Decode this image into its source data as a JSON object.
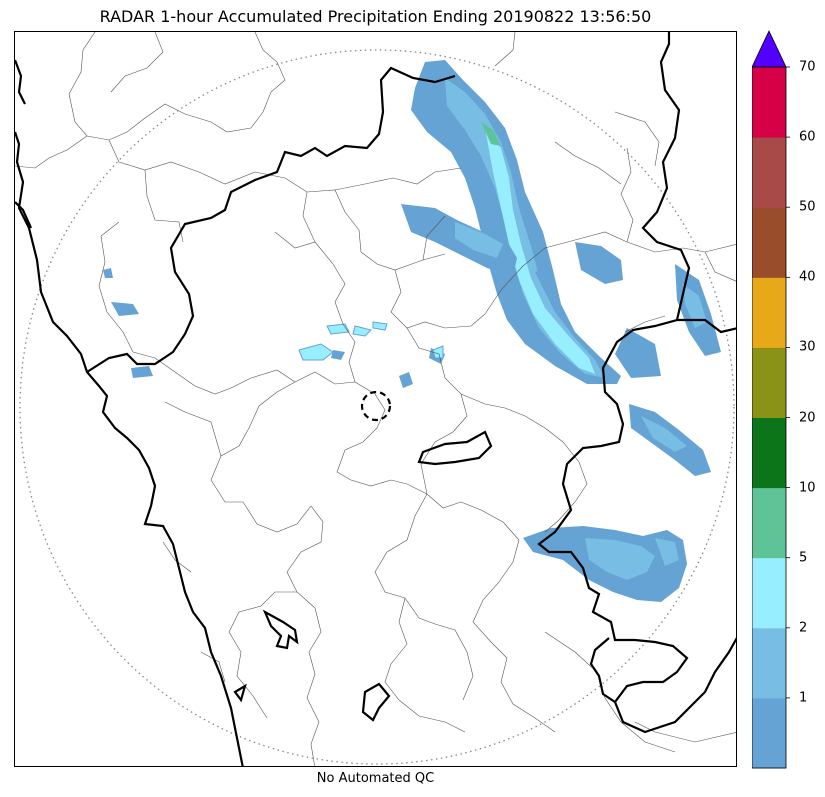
{
  "title": "RADAR 1-hour Accumulated Precipitation Ending 20190822 13:56:50",
  "footer": "No Automated QC",
  "colorbar": {
    "levels": [
      {
        "label": "",
        "color": "#64a3d4"
      },
      {
        "label": "1",
        "color": "#78bde3"
      },
      {
        "label": "2",
        "color": "#96eefe"
      },
      {
        "label": "5",
        "color": "#5ec498"
      },
      {
        "label": "10",
        "color": "#0c7419"
      },
      {
        "label": "20",
        "color": "#8a9218"
      },
      {
        "label": "30",
        "color": "#e7a81a"
      },
      {
        "label": "40",
        "color": "#9a4d2a"
      },
      {
        "label": "50",
        "color": "#a84a48"
      },
      {
        "label": "60",
        "color": "#d50045"
      },
      {
        "label": "70",
        "color": ""
      }
    ],
    "extend_color": "#5200ff"
  },
  "colors": {
    "precip_light": "#64a3d4",
    "precip_moderate": "#78bde3",
    "precip_heavy": "#96eefe",
    "precip_core": "#5ec498",
    "state_border": "#000000",
    "district_border": "#555555",
    "range_ring": "#888888"
  }
}
